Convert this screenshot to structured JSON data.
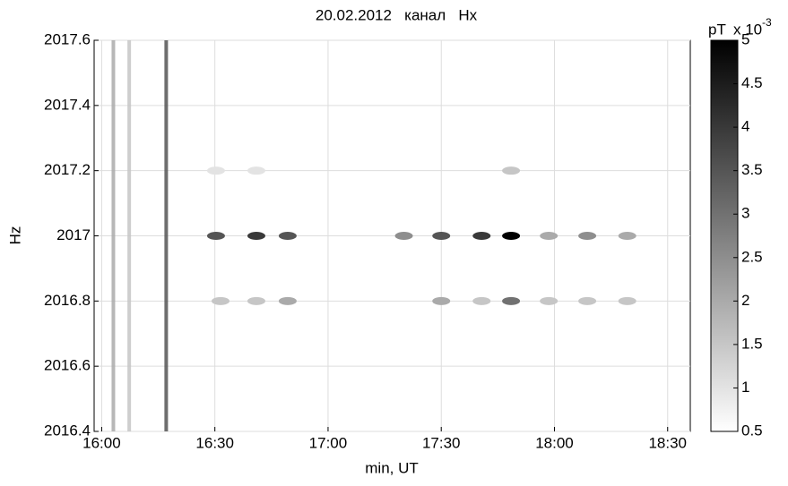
{
  "chart_data": {
    "type": "spectrogram",
    "title": "20.02.2012   канал   Hx",
    "xlabel": "min, UT",
    "ylabel": "Hz",
    "xlim": [
      958,
      1116
    ],
    "xticks": [
      {
        "value": 960,
        "label": "16:00"
      },
      {
        "value": 990,
        "label": "16:30"
      },
      {
        "value": 1020,
        "label": "17:00"
      },
      {
        "value": 1050,
        "label": "17:30"
      },
      {
        "value": 1080,
        "label": "18:00"
      },
      {
        "value": 1110,
        "label": "18:30"
      }
    ],
    "ylim": [
      2016.4,
      2017.6
    ],
    "yticks": [
      2016.4,
      2016.6,
      2016.8,
      2017,
      2017.2,
      2017.4,
      2017.6
    ],
    "grid": true,
    "vertical_lines": {
      "x": [
        963.1,
        967.3,
        977.1
      ],
      "values": [
        2,
        1.5,
        3.5
      ]
    },
    "rows": [
      {
        "y": 2017,
        "x": [
          990.3,
          1001,
          1009.3,
          1040.1,
          1050,
          1060.7,
          1068.5,
          1078.5,
          1088.7,
          1099.3
        ],
        "values": [
          3.5,
          4,
          3.5,
          2.5,
          3.5,
          4,
          5,
          2,
          2.5,
          2
        ]
      },
      {
        "y": 2016.8,
        "x": [
          991.5,
          1001,
          1009.3,
          1050,
          1060.7,
          1068.5,
          1078.5,
          1088.7,
          1099.3
        ],
        "values": [
          1.5,
          1.5,
          2,
          2,
          1.5,
          3,
          1.5,
          1.5,
          1.5
        ]
      },
      {
        "y": 2017.2,
        "x": [
          990.3,
          1001,
          1068.5
        ],
        "values": [
          1,
          1,
          1.5
        ]
      }
    ],
    "colorbar": {
      "label": "pT",
      "multiplier": "x 10",
      "exponent": "-3",
      "lim": [
        0.5,
        5
      ],
      "ticks": [
        0.5,
        1,
        1.5,
        2,
        2.5,
        3,
        3.5,
        4,
        4.5,
        5
      ]
    }
  }
}
